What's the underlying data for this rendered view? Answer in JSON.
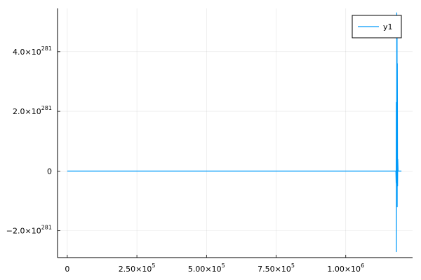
{
  "chart_data": {
    "type": "line",
    "title": "",
    "xlabel": "",
    "ylabel": "",
    "grid": true,
    "legend_position": "top-right",
    "xlim": [
      -35000,
      1240000
    ],
    "ylim": [
      -2.9e+281,
      5.45e+281
    ],
    "x_ticks": [
      {
        "value": 0,
        "mantissa": "0",
        "exponent": ""
      },
      {
        "value": 250000,
        "mantissa": "2.50×10",
        "exponent": "5"
      },
      {
        "value": 500000,
        "mantissa": "5.00×10",
        "exponent": "5"
      },
      {
        "value": 750000,
        "mantissa": "7.50×10",
        "exponent": "5"
      },
      {
        "value": 1000000,
        "mantissa": "1.00×10",
        "exponent": "6"
      }
    ],
    "y_ticks": [
      {
        "value": -2e+281,
        "mantissa": "−2.0×10",
        "exponent": "281"
      },
      {
        "value": 0,
        "mantissa": "0",
        "exponent": ""
      },
      {
        "value": 2e+281,
        "mantissa": "2.0×10",
        "exponent": "281"
      },
      {
        "value": 4e+281,
        "mantissa": "4.0×10",
        "exponent": "281"
      }
    ],
    "series": [
      {
        "name": "y1",
        "color": "#009af9",
        "x": [
          0,
          1180000,
          1181000,
          1181500,
          1182000,
          1182300,
          1182800,
          1183200,
          1183800,
          1184300,
          1184800,
          1185300,
          1186200,
          1186800,
          1188000,
          1200000
        ],
        "y": [
          0,
          0,
          -4e+280,
          2.3e+281,
          -2.7e+281,
          1.1e+281,
          -9e+280,
          5.3e+281,
          8e+280,
          4.6e+281,
          -1.2e+281,
          3.6e+281,
          -5e+280,
          4e+280,
          0,
          0
        ]
      }
    ]
  }
}
